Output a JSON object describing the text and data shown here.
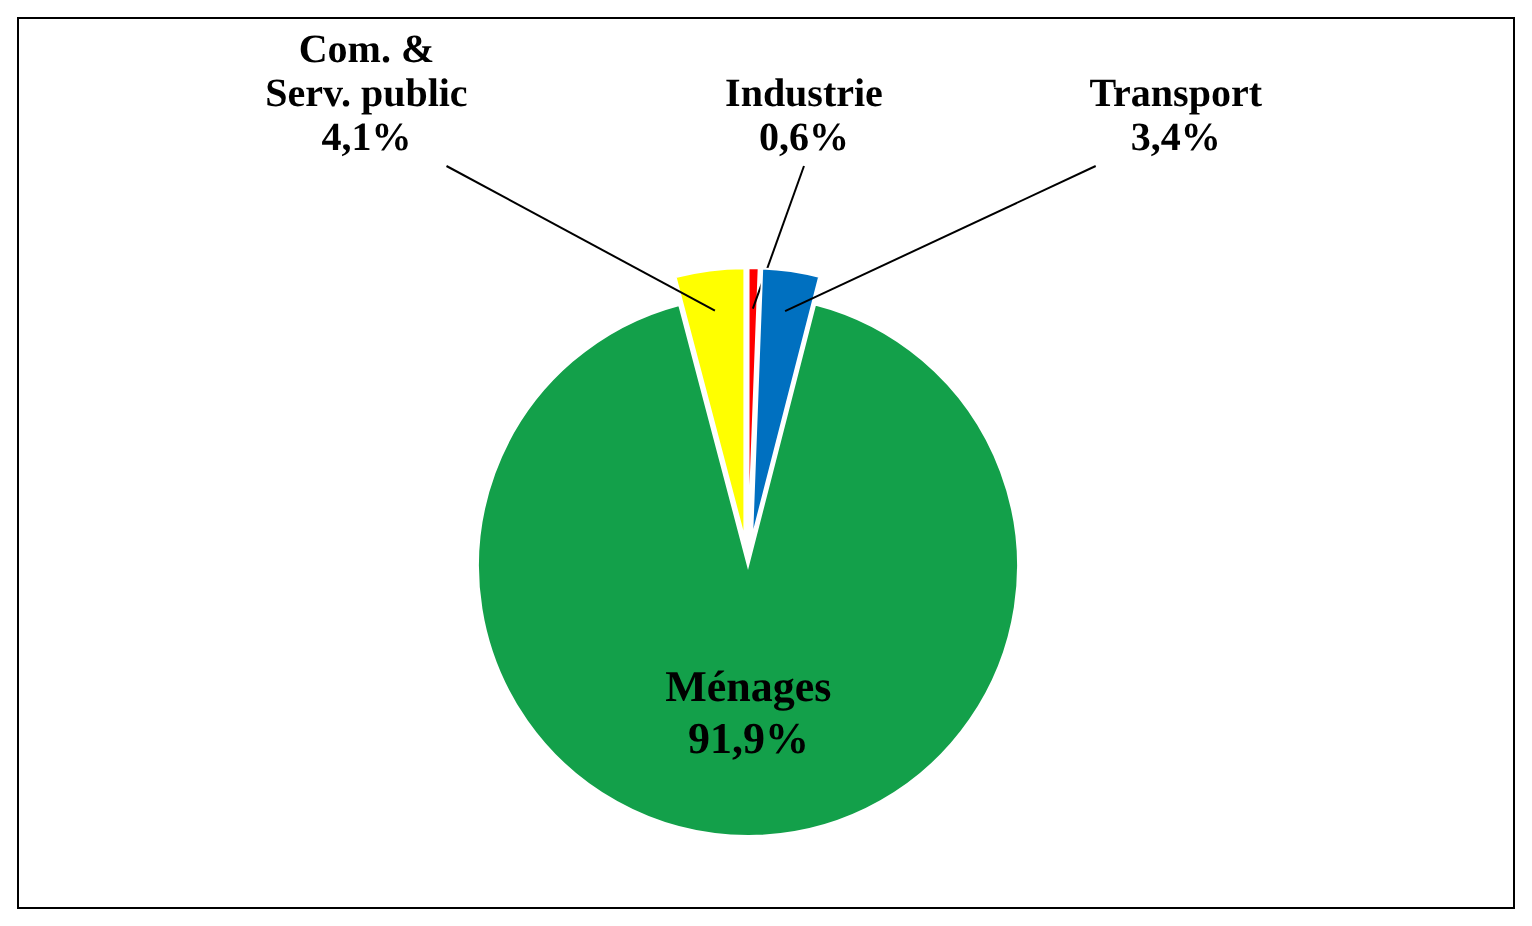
{
  "chart_data": {
    "type": "pie",
    "categories": [
      "Industrie",
      "Transport",
      "Ménages",
      "Com. &\nServ. public"
    ],
    "values": [
      0.6,
      3.4,
      91.9,
      4.1
    ],
    "colors": [
      "#ff0000",
      "#0070c0",
      "#13a04a",
      "#ffff00"
    ],
    "value_labels": [
      "0,6%",
      "3,4%",
      "91,9%",
      "4,1%"
    ]
  }
}
